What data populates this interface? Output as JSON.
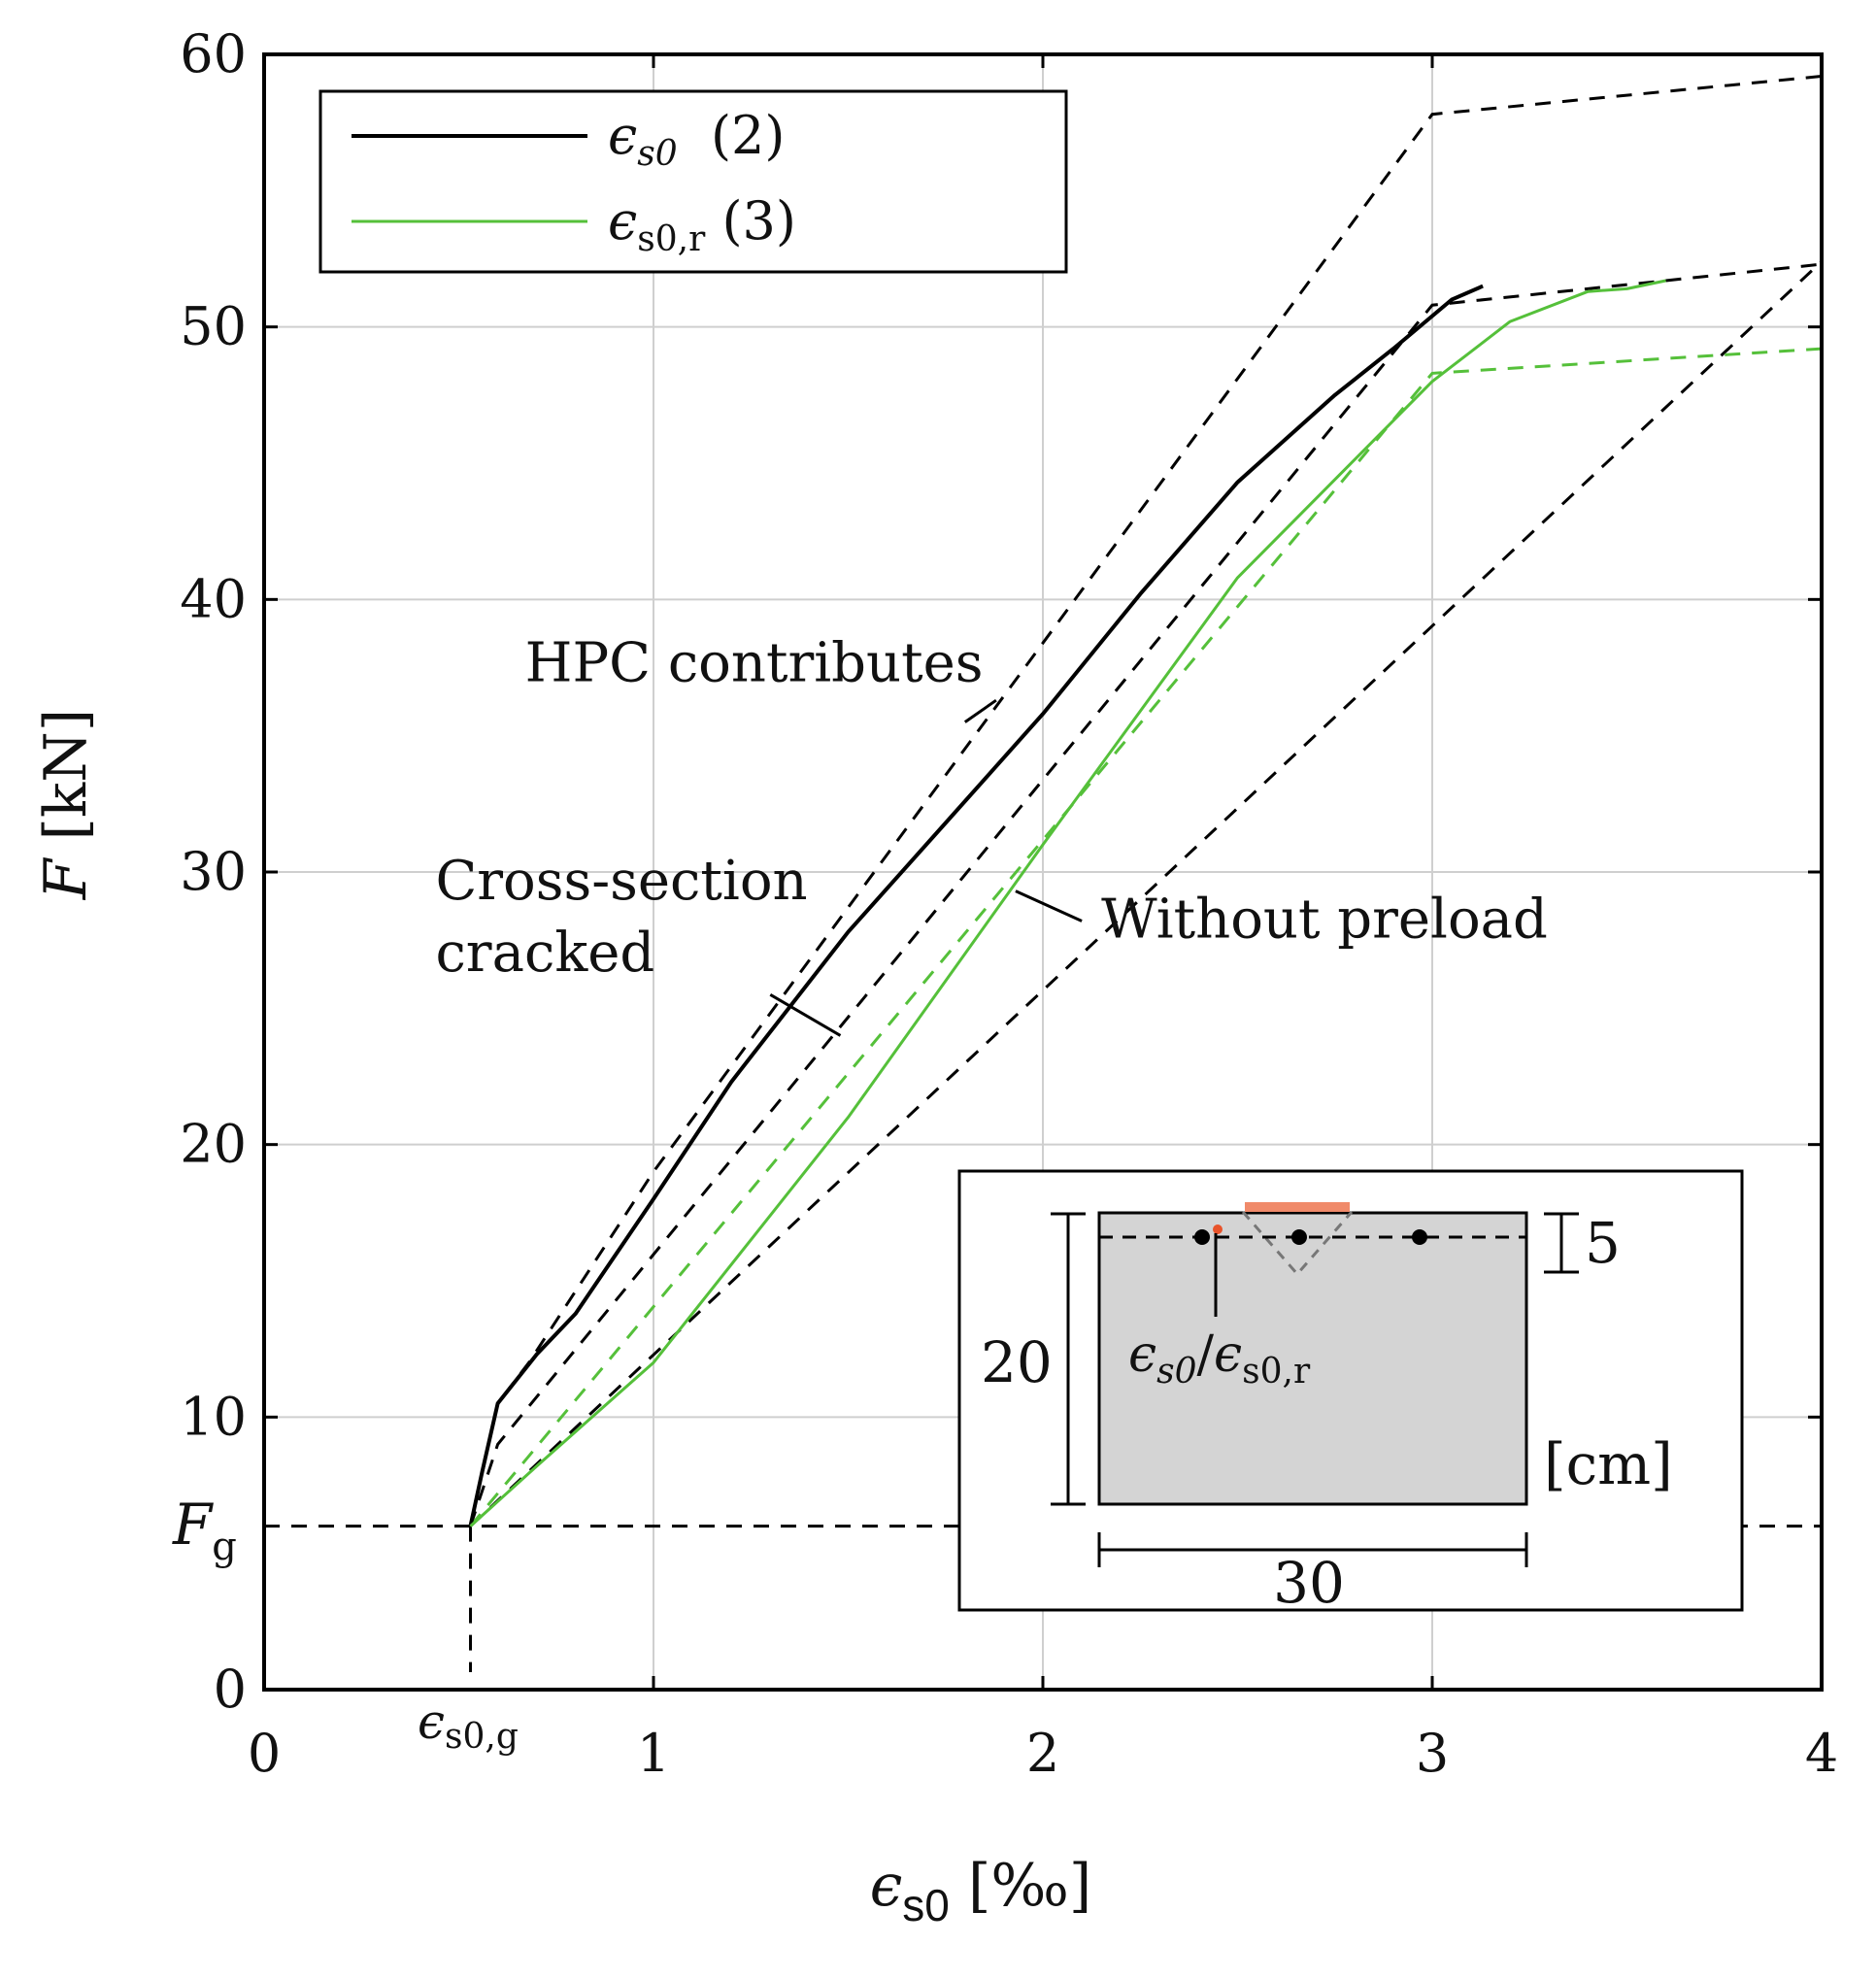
{
  "chart_data": {
    "type": "line",
    "xlabel": {
      "sym": "ϵ",
      "sub": "s0",
      "unit": " [‰]"
    },
    "ylabel": {
      "sym": "F",
      "unit": " [kN]"
    },
    "xlim": [
      0,
      4
    ],
    "ylim": [
      0,
      60
    ],
    "x_ticks": [
      0,
      1,
      2,
      3,
      4
    ],
    "x_tick_labels": [
      "0",
      "1",
      "2",
      "3",
      "4"
    ],
    "y_ticks": [
      0,
      10,
      20,
      30,
      40,
      50,
      60
    ],
    "y_tick_labels": [
      "0",
      "10",
      "20",
      "30",
      "40",
      "50",
      "60"
    ],
    "grid": true,
    "legend": {
      "position": "top-left",
      "entries": [
        {
          "sym": "ϵ",
          "sub": "s0",
          "suffix": "  (2)",
          "color": "#000000"
        },
        {
          "sym": "ϵ",
          "sub": "s0,r",
          "suffix": " (3)",
          "color": "#55c03a"
        }
      ]
    },
    "reference": {
      "Fg": 6.0,
      "eps_g": 0.53,
      "Fg_label": {
        "sym": "F",
        "sub": "g"
      },
      "eps_g_label": {
        "sym": "ϵ",
        "sub": "s0,g"
      }
    },
    "series": [
      {
        "color": "#000000",
        "style": "solid",
        "points": [
          [
            0.53,
            6.0
          ],
          [
            0.56,
            8.0
          ],
          [
            0.6,
            10.5
          ],
          [
            0.7,
            12.3
          ],
          [
            0.8,
            13.8
          ],
          [
            1.0,
            18.0
          ],
          [
            1.2,
            22.3
          ],
          [
            1.5,
            27.8
          ],
          [
            1.75,
            31.8
          ],
          [
            2.0,
            35.8
          ],
          [
            2.25,
            40.2
          ],
          [
            2.5,
            44.3
          ],
          [
            2.75,
            47.5
          ],
          [
            2.9,
            49.2
          ],
          [
            3.05,
            51.0
          ],
          [
            3.13,
            51.5
          ]
        ]
      },
      {
        "color": "#55c03a",
        "style": "solid",
        "points": [
          [
            0.53,
            6.0
          ],
          [
            0.7,
            8.2
          ],
          [
            1.0,
            12.0
          ],
          [
            1.5,
            21.0
          ],
          [
            2.0,
            31.0
          ],
          [
            2.5,
            40.8
          ],
          [
            3.0,
            48.0
          ],
          [
            3.2,
            50.2
          ],
          [
            3.4,
            51.3
          ],
          [
            3.5,
            51.4
          ],
          [
            3.6,
            51.7
          ]
        ]
      }
    ],
    "reference_lines": [
      {
        "color": "#000000",
        "points": [
          [
            0.53,
            6.0
          ],
          [
            0.6,
            10.5
          ],
          [
            0.68,
            12.0
          ],
          [
            1.0,
            19.0
          ],
          [
            3.0,
            57.8
          ],
          [
            4.0,
            59.2
          ]
        ]
      },
      {
        "color": "#000000",
        "points": [
          [
            0.53,
            6.0
          ],
          [
            0.6,
            9.0
          ],
          [
            3.0,
            50.8
          ],
          [
            4.0,
            52.3
          ]
        ]
      },
      {
        "color": "#000000",
        "points": [
          [
            0.53,
            6.0
          ],
          [
            4.0,
            52.4
          ]
        ]
      },
      {
        "color": "#55c03a",
        "points": [
          [
            0.53,
            6.0
          ],
          [
            3.0,
            48.3
          ],
          [
            4.0,
            49.2
          ]
        ]
      }
    ],
    "annotations": [
      {
        "lines": [
          "HPC contributes"
        ],
        "x": 0.67,
        "y": 37.0,
        "leader": [
          [
            1.8,
            35.5
          ],
          [
            1.88,
            36.3
          ]
        ]
      },
      {
        "lines": [
          "Cross-section",
          "cracked"
        ],
        "x": 0.44,
        "y": 29.0,
        "leader": [
          [
            1.3,
            25.5
          ],
          [
            1.48,
            24.0
          ]
        ]
      },
      {
        "lines": [
          "Without preload"
        ],
        "x": 2.15,
        "y": 27.6,
        "leader": [
          [
            1.93,
            29.3
          ],
          [
            2.1,
            28.2
          ]
        ]
      }
    ],
    "inset": {
      "dimension_labels": [
        "5",
        "20",
        "30",
        "[cm]"
      ],
      "label": {
        "sym1": "ϵ",
        "sub1": "s0",
        "sep": "/",
        "sym2": "ϵ",
        "sub2": "s0,r"
      }
    }
  }
}
